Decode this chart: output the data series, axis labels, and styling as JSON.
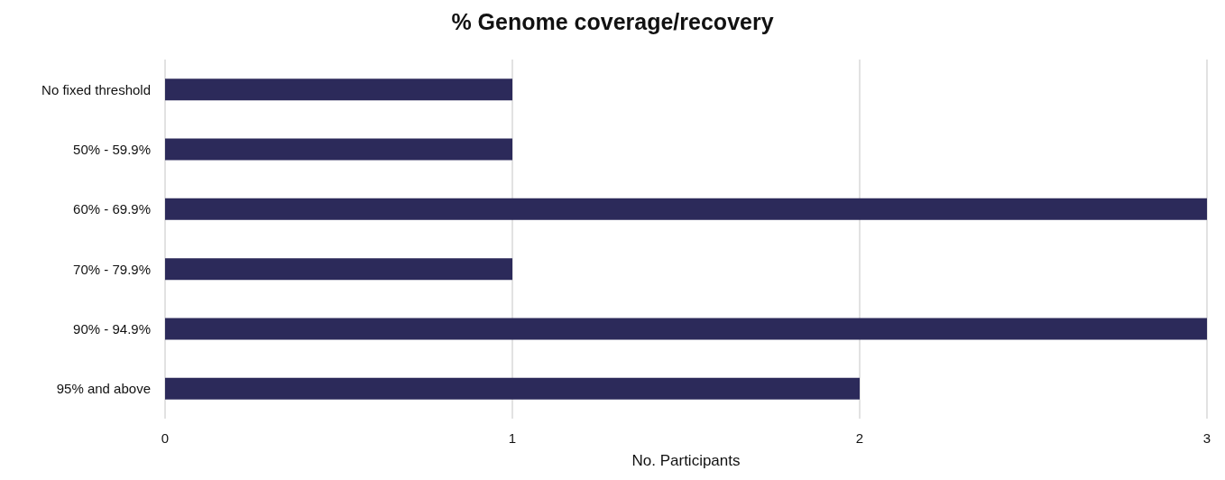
{
  "chart_data": {
    "type": "bar",
    "orientation": "horizontal",
    "title": "% Genome coverage/recovery",
    "xlabel": "No. Participants",
    "categories": [
      "No fixed threshold",
      "50% - 59.9%",
      "60% - 69.9%",
      "70% - 79.9%",
      "90% - 94.9%",
      "95% and above"
    ],
    "values": [
      1,
      1,
      3,
      1,
      3,
      2
    ],
    "color": "#2c2a5a",
    "xlim": [
      0,
      3
    ],
    "xticks": [
      0,
      1,
      2,
      3
    ],
    "grid": "x"
  }
}
